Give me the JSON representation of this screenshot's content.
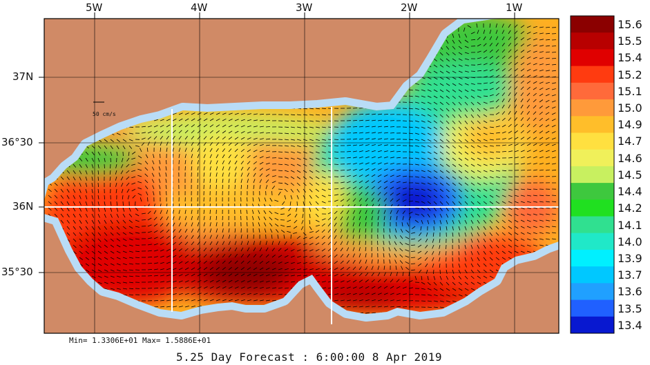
{
  "map": {
    "longitude_labels": [
      "5W",
      "4W",
      "3W",
      "2W",
      "1W"
    ],
    "latitude_labels": [
      "37N",
      "36°30",
      "36N",
      "35°30"
    ],
    "vector_scale_label": "50 cm/s",
    "min_max_text": "Min= 1.3306E+01  Max= 1.5886E+01",
    "forecast_text": "5.25 Day Forecast :  6:00:00   8 Apr 2019",
    "colors": {
      "land": "#d08a66",
      "shelf": "#b9dcf6",
      "vector": "#000000",
      "grid": "#000000",
      "section_line": "#ffffff"
    }
  },
  "colorbar": {
    "labels": [
      "15.6",
      "15.5",
      "15.4",
      "15.2",
      "15.1",
      "15.0",
      "14.9",
      "14.7",
      "14.6",
      "14.5",
      "14.4",
      "14.2",
      "14.1",
      "14.0",
      "13.9",
      "13.7",
      "13.6",
      "13.5",
      "13.4"
    ],
    "colors": [
      "#8b0000",
      "#b80000",
      "#e00000",
      "#ff3b10",
      "#ff6a3a",
      "#ff9a3a",
      "#ffbe2a",
      "#ffe040",
      "#f0f05a",
      "#c8f060",
      "#3ec83e",
      "#20e020",
      "#30e090",
      "#20e8c8",
      "#00f0ff",
      "#00c8ff",
      "#20a0ff",
      "#2060ff",
      "#0818d0"
    ]
  }
}
